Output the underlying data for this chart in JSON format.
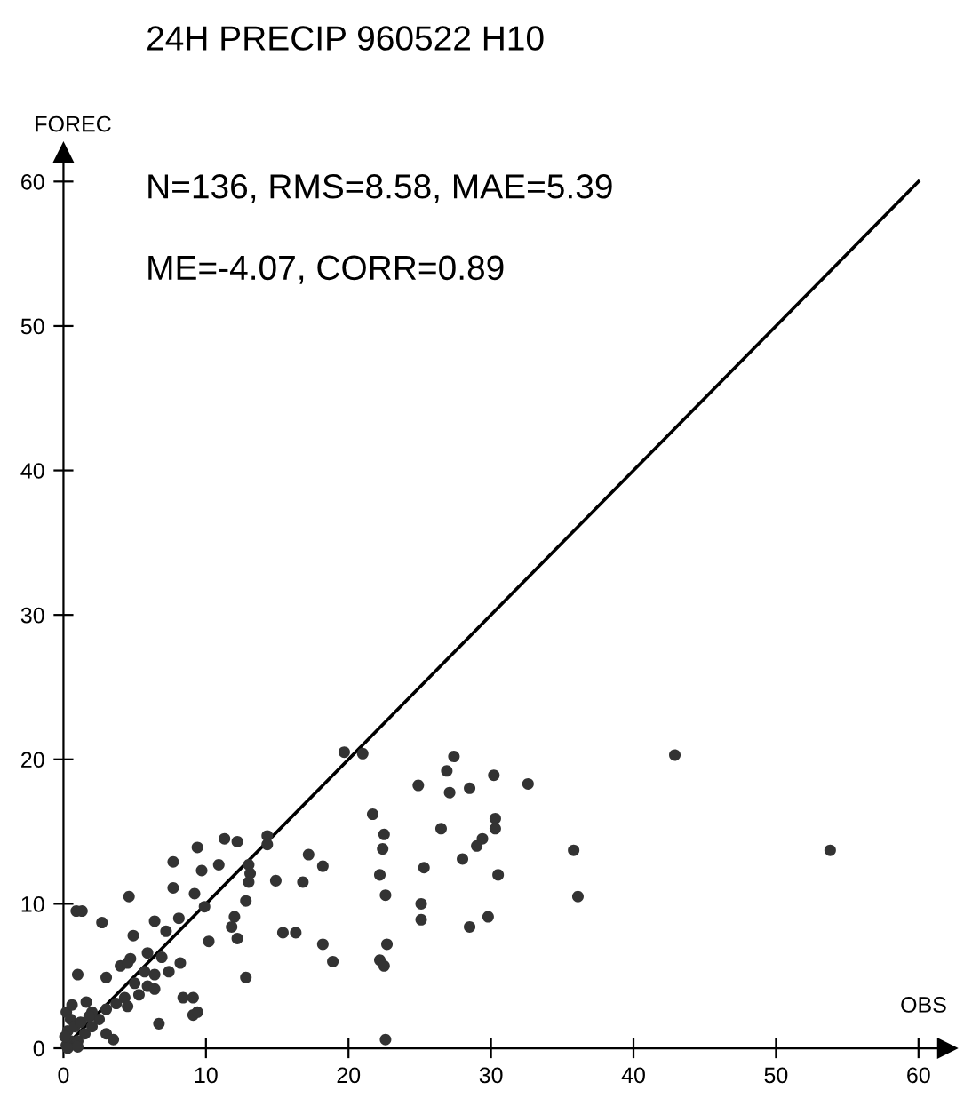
{
  "chart_data": {
    "type": "scatter",
    "title": "24H PRECIP 960522 H10",
    "xlabel": "OBS",
    "ylabel": "FOREC",
    "annotations": [
      "N=136, RMS=8.58, MAE=5.39",
      "ME=-4.07, CORR=0.89"
    ],
    "xlim": [
      0,
      62
    ],
    "ylim": [
      0,
      62
    ],
    "xticks": [
      0,
      10,
      20,
      30,
      40,
      50,
      60
    ],
    "yticks": [
      0,
      10,
      20,
      30,
      40,
      50,
      60
    ],
    "series": [
      {
        "color": "#333333",
        "marker": "circle",
        "x": [
          19.7,
          11.3,
          12.2,
          14.3,
          14.3,
          9.4,
          7.7,
          17.2,
          18.2,
          9.7,
          10.9,
          13.0,
          13.1,
          13.0,
          14.9,
          16.8,
          7.7,
          9.2,
          4.6,
          12.8,
          9.9,
          0.9,
          1.3,
          2.7,
          6.4,
          8.1,
          12.0,
          11.8,
          7.2,
          4.9,
          12.2,
          15.4,
          16.3,
          10.2,
          5.9,
          4.7,
          6.9,
          18.2,
          18.9,
          4.0,
          4.5,
          8.2,
          5.7,
          6.4,
          7.4,
          1.0,
          3.0,
          12.8,
          5.0,
          5.9,
          6.4,
          5.3,
          4.3,
          3.7,
          3.0,
          4.5,
          8.4,
          9.1,
          1.6,
          9.1,
          9.4,
          6.7,
          3.0,
          3.5,
          0.2,
          0.5,
          0.3,
          0.8,
          1.2,
          1.5,
          2.0,
          0.5,
          0.2,
          1.0,
          2.5,
          2.0,
          0.1,
          0.6,
          1.8,
          0.3,
          1.0,
          21.0,
          27.4,
          26.9,
          30.2,
          24.9,
          27.1,
          28.5,
          32.6,
          42.9,
          21.7,
          22.5,
          22.4,
          26.5,
          30.3,
          30.3,
          29.4,
          29.0,
          28.0,
          22.2,
          25.3,
          30.5,
          35.8,
          36.1,
          22.6,
          25.1,
          25.1,
          29.8,
          28.5,
          22.7,
          22.2,
          22.5,
          22.6,
          53.8
        ],
        "values": [
          20.5,
          14.5,
          14.3,
          14.7,
          14.1,
          13.9,
          12.9,
          13.4,
          12.6,
          12.3,
          12.7,
          12.7,
          12.1,
          11.5,
          11.6,
          11.5,
          11.1,
          10.7,
          10.5,
          10.2,
          9.8,
          9.5,
          9.5,
          8.7,
          8.8,
          9.0,
          9.1,
          8.4,
          8.1,
          7.8,
          7.6,
          8.0,
          8.0,
          7.4,
          6.6,
          6.2,
          6.3,
          7.2,
          6.0,
          5.7,
          5.9,
          5.9,
          5.3,
          5.1,
          5.3,
          5.1,
          4.9,
          4.9,
          4.5,
          4.3,
          4.1,
          3.7,
          3.5,
          3.1,
          2.7,
          2.9,
          3.5,
          3.5,
          3.2,
          2.3,
          2.5,
          1.7,
          1.0,
          0.6,
          2.5,
          2.0,
          1.2,
          1.5,
          1.8,
          1.0,
          1.5,
          0.5,
          0.2,
          0.5,
          2.0,
          2.5,
          0.8,
          3.0,
          2.2,
          0.0,
          0.1,
          20.4,
          20.2,
          19.2,
          18.9,
          18.2,
          17.7,
          18.0,
          18.3,
          20.3,
          16.2,
          14.8,
          13.8,
          15.2,
          15.9,
          15.2,
          14.5,
          14.0,
          13.1,
          12.0,
          12.5,
          12.0,
          13.7,
          10.5,
          10.6,
          10.0,
          8.9,
          9.1,
          8.4,
          7.2,
          6.1,
          5.7,
          0.6,
          13.7
        ]
      },
      {
        "type": "line",
        "color": "#000000",
        "x": [
          0,
          60
        ],
        "values": [
          0,
          60
        ]
      }
    ]
  }
}
